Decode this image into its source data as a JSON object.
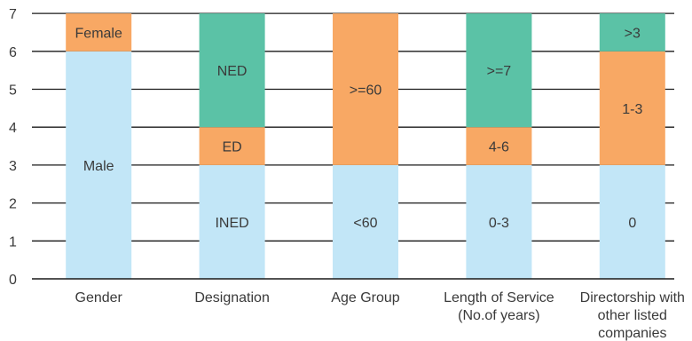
{
  "chart_data": {
    "type": "bar",
    "stacked": true,
    "grid": true,
    "legend": "none",
    "ylim": [
      0,
      7
    ],
    "yticks": [
      "0",
      "1",
      "2",
      "3",
      "4",
      "5",
      "6",
      "7"
    ],
    "colors": {
      "blue": "#c2e6f7",
      "orange": "#f8a864",
      "green": "#5bc2a6"
    },
    "categories": [
      {
        "label": [
          "Gender"
        ],
        "segments": [
          {
            "label": "Male",
            "value": 6,
            "color": "blue"
          },
          {
            "label": "Female",
            "value": 1,
            "color": "orange"
          }
        ]
      },
      {
        "label": [
          "Designation"
        ],
        "segments": [
          {
            "label": "INED",
            "value": 3,
            "color": "blue"
          },
          {
            "label": "ED",
            "value": 1,
            "color": "orange"
          },
          {
            "label": "NED",
            "value": 3,
            "color": "green"
          }
        ]
      },
      {
        "label": [
          "Age Group"
        ],
        "segments": [
          {
            "label": "<60",
            "value": 3,
            "color": "blue"
          },
          {
            "label": ">=60",
            "value": 4,
            "color": "orange"
          }
        ]
      },
      {
        "label": [
          "Length of Service",
          "(No.of years)"
        ],
        "segments": [
          {
            "label": "0-3",
            "value": 3,
            "color": "blue"
          },
          {
            "label": "4-6",
            "value": 1,
            "color": "orange"
          },
          {
            "label": ">=7",
            "value": 3,
            "color": "green"
          }
        ]
      },
      {
        "label": [
          "Directorship with",
          "other listed",
          "companies"
        ],
        "segments": [
          {
            "label": "0",
            "value": 3,
            "color": "blue"
          },
          {
            "label": "1-3",
            "value": 3,
            "color": "orange"
          },
          {
            "label": ">3",
            "value": 1,
            "color": "green"
          }
        ]
      }
    ]
  }
}
